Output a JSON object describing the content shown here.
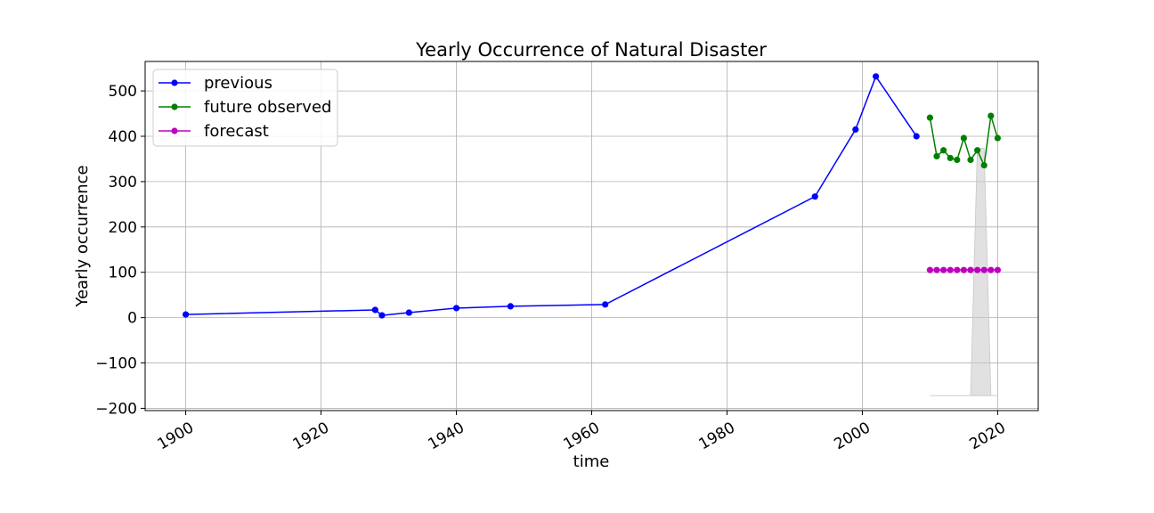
{
  "chart_data": {
    "type": "line",
    "title": "Yearly Occurrence of Natural Disaster",
    "xlabel": "time",
    "ylabel": "Yearly occurrence",
    "xlim": [
      1894,
      2026
    ],
    "ylim": [
      -205,
      565
    ],
    "x_ticks": [
      1900,
      1920,
      1940,
      1960,
      1980,
      2000,
      2020
    ],
    "y_ticks": [
      -200,
      -100,
      0,
      100,
      200,
      300,
      400,
      500
    ],
    "y_tick_labels": [
      "−200",
      "−100",
      "0",
      "100",
      "200",
      "300",
      "400",
      "500"
    ],
    "grid": true,
    "legend_position": "top-left",
    "series": [
      {
        "name": "previous",
        "color": "#0000ff",
        "x": [
          1900,
          1928,
          1929,
          1933,
          1940,
          1948,
          1962,
          1993,
          1999,
          2002,
          2008
        ],
        "y": [
          7,
          17,
          5,
          11,
          21,
          25,
          29,
          267,
          415,
          532,
          400
        ]
      },
      {
        "name": "future observed",
        "color": "#008000",
        "x": [
          2010,
          2011,
          2012,
          2013,
          2014,
          2015,
          2016,
          2017,
          2018,
          2019,
          2020
        ],
        "y": [
          441,
          356,
          369,
          352,
          348,
          396,
          348,
          369,
          336,
          445,
          396
        ]
      },
      {
        "name": "forecast",
        "color": "#bf00bf",
        "x": [
          2010,
          2011,
          2012,
          2013,
          2014,
          2015,
          2016,
          2017,
          2018,
          2019,
          2020
        ],
        "y": [
          105,
          105,
          105,
          105,
          105,
          105,
          105,
          105,
          105,
          105,
          105
        ]
      }
    ],
    "confidence_band": {
      "color": "#c8c8c8",
      "x": [
        2010,
        2011,
        2012,
        2013,
        2014,
        2015,
        2016,
        2017,
        2018,
        2019,
        2020
      ],
      "lower": [
        -172,
        -172,
        -172,
        -172,
        -172,
        -172,
        -172,
        -172,
        -172,
        -172,
        -172
      ],
      "upper": [
        -172,
        -172,
        -172,
        -172,
        -172,
        -172,
        -172,
        374,
        374,
        -172,
        -172
      ]
    }
  }
}
